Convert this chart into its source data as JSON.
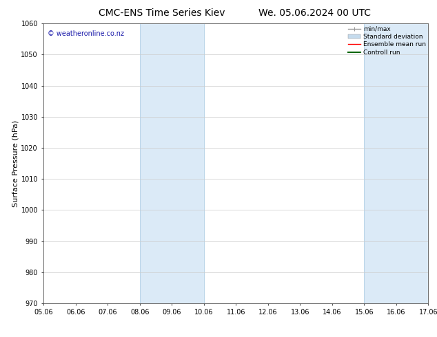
{
  "title_left": "CMC-ENS Time Series Kiev",
  "title_right": "We. 05.06.2024 00 UTC",
  "ylabel": "Surface Pressure (hPa)",
  "ylim": [
    970,
    1060
  ],
  "yticks": [
    970,
    980,
    990,
    1000,
    1010,
    1020,
    1030,
    1040,
    1050,
    1060
  ],
  "xtick_labels": [
    "05.06",
    "06.06",
    "07.06",
    "08.06",
    "09.06",
    "10.06",
    "11.06",
    "12.06",
    "13.06",
    "14.06",
    "15.06",
    "16.06",
    "17.06"
  ],
  "shaded_regions": [
    [
      "08.06",
      "10.06"
    ],
    [
      "15.06",
      "17.06"
    ]
  ],
  "shaded_color": "#dbeaf7",
  "shaded_edge_color": "#b8d4e8",
  "watermark_text": "© weatheronline.co.nz",
  "watermark_color": "#1a1aaa",
  "legend_items": [
    {
      "label": "min/max",
      "color": "#999999",
      "lw": 1.0
    },
    {
      "label": "Standard deviation",
      "color": "#c5dbed",
      "lw": 5
    },
    {
      "label": "Ensemble mean run",
      "color": "#ff0000",
      "lw": 1.0
    },
    {
      "label": "Controll run",
      "color": "#006600",
      "lw": 1.5
    }
  ],
  "background_color": "#ffffff",
  "grid_color": "#cccccc",
  "title_fontsize": 10,
  "tick_fontsize": 7,
  "ylabel_fontsize": 8,
  "watermark_fontsize": 7,
  "legend_fontsize": 6.5
}
